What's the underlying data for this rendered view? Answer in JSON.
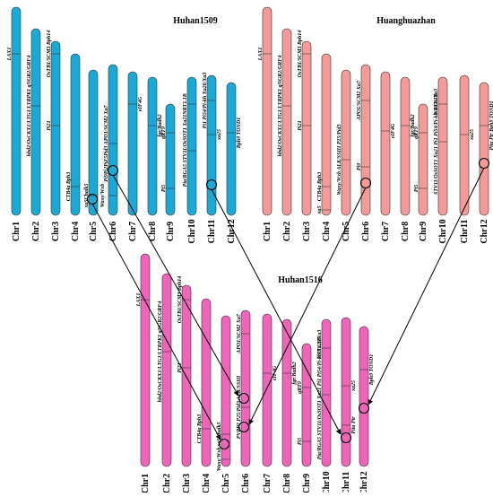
{
  "colors": {
    "huhan1509": "#1aa9d6",
    "huanghuazhan": "#f59a98",
    "huhan1516": "#f064b9",
    "line": "#000000",
    "circle_stroke": "#000000",
    "circle_fill": "#8dbd3a"
  },
  "panels": [
    {
      "id": "huhan1509",
      "title": "Huhan1509",
      "chromosomes": [
        "Chr1",
        "Chr2",
        "Chr3",
        "Chr4",
        "Chr5",
        "Chr6",
        "Chr7",
        "Chr8",
        "Chr9",
        "Chr10",
        "Chr11",
        "Chr12"
      ],
      "genes": [
        {
          "chr": "Chr1",
          "label": "LAX1"
        },
        {
          "chr": "Chr2",
          "label": "hbd2/OsCKX1/LTG1/LTRPK1 qNGR2/GRF4"
        },
        {
          "chr": "Chr3",
          "label": "OsTB1/SCM3 Bph14"
        },
        {
          "chr": "Chr3",
          "label": "Pi21"
        },
        {
          "chr": "Chr4",
          "label": "CTB4a Bph3"
        },
        {
          "chr": "Chr5",
          "label": "xa5Chalk5"
        },
        {
          "chr": "Chr5",
          "label": "Waxy/Wxb"
        },
        {
          "chr": "Chr6",
          "label": "Pi9Pi2PiZ5Pid3 APO1/SCM2 Xa7"
        },
        {
          "chr": "Chr7",
          "label": "eIF4G"
        },
        {
          "chr": "Chr8",
          "label": "fgr/Badh2"
        },
        {
          "chr": "Chr9",
          "label": "qRT9"
        },
        {
          "chr": "Chr9",
          "label": "Pi5"
        },
        {
          "chr": "Chr10",
          "label": "NRT1.1B"
        },
        {
          "chr": "Chr10",
          "label": "Pia/RGA5 STV11/OsSOT1 Xa21"
        },
        {
          "chr": "Chr11",
          "label": "Pi1 Pi54/Pi-kh Xa26/Xa3"
        },
        {
          "chr": "Chr11",
          "label": "xa25"
        },
        {
          "chr": "Chr12",
          "label": "Bph9 TOND1"
        }
      ]
    },
    {
      "id": "huanghuazhan",
      "title": "Huanghuazhan",
      "chromosomes": [
        "Chr1",
        "Chr2",
        "Chr3",
        "Chr4",
        "Chr5",
        "Chr6",
        "Chr7",
        "Chr8",
        "Chr9",
        "Chr10",
        "Chr11",
        "Chr12"
      ],
      "genes": [
        {
          "chr": "Chr1",
          "label": "LAX1"
        },
        {
          "chr": "Chr2",
          "label": "hbd2/OsCKX1/LTG1/LTRPK1 qNGR2/GRF4"
        },
        {
          "chr": "Chr3",
          "label": "OsTB1/SCM3 Bph14"
        },
        {
          "chr": "Chr3",
          "label": "Pi21"
        },
        {
          "chr": "Chr4",
          "label": "CTB4a Bph3"
        },
        {
          "chr": "Chr4",
          "label": "xa5"
        },
        {
          "chr": "Chr5",
          "label": "Waxy/Wxb ALK/SSIII P25/Pid3"
        },
        {
          "chr": "Chr6",
          "label": "APO1/SCM2 Xa7"
        },
        {
          "chr": "Chr6",
          "label": "Pi9"
        },
        {
          "chr": "Chr7",
          "label": "eIF4G"
        },
        {
          "chr": "Chr8",
          "label": "fgr/Badh2"
        },
        {
          "chr": "Chr9",
          "label": "qRT9"
        },
        {
          "chr": "Chr9",
          "label": "Pi5"
        },
        {
          "chr": "Chr10",
          "label": "NRT1.1B"
        },
        {
          "chr": "Chr10",
          "label": "STV11/OsSOT1 Xa21 Pi1 Pi54/Pi-kh Xa26/Xa3"
        },
        {
          "chr": "Chr11",
          "label": "xa25"
        },
        {
          "chr": "Chr12",
          "label": "Pita Ptr Bph9 TOND1"
        }
      ]
    },
    {
      "id": "huhan1516",
      "title": "Huhan1516",
      "chromosomes": [
        "Chr1",
        "Chr2",
        "Chr3",
        "Chr4",
        "Chr5",
        "Chr6",
        "Chr7",
        "Chr8",
        "Chr9",
        "Chr10",
        "Chr11",
        "Chr12"
      ],
      "genes": [
        {
          "chr": "Chr1",
          "label": "LAX1"
        },
        {
          "chr": "Chr2",
          "label": "hbd2/OsCKX1/LTG1/LTRPK1 qNGR2/GRF4"
        },
        {
          "chr": "Chr3",
          "label": "OsTB1/SCM3 Bph14"
        },
        {
          "chr": "Chr3",
          "label": "Pi21"
        },
        {
          "chr": "Chr4",
          "label": "CTB4a Bph3"
        },
        {
          "chr": "Chr5",
          "label": "xa5Chalk5"
        },
        {
          "chr": "Chr5",
          "label": "Waxy/Wxb"
        },
        {
          "chr": "Chr6",
          "label": "APO1/SCM2 Xa7"
        },
        {
          "chr": "Chr6",
          "label": "PVPP2 P25/Pid3 ALK/SSIII"
        },
        {
          "chr": "Chr7",
          "label": "eIF4G"
        },
        {
          "chr": "Chr8",
          "label": "fgr/Badh2"
        },
        {
          "chr": "Chr9",
          "label": "qRT9"
        },
        {
          "chr": "Chr9",
          "label": "Pi5"
        },
        {
          "chr": "Chr10",
          "label": "NRT1.1B"
        },
        {
          "chr": "Chr10",
          "label": "Pia/RGA5 STV11/OsSOT1 Xa21 Pi1 Pi54/Pi-kh Xa26/Xa3"
        },
        {
          "chr": "Chr11",
          "label": "xa25"
        },
        {
          "chr": "Chr11",
          "label": "Pita Ptr"
        },
        {
          "chr": "Chr12",
          "label": "Bph9 TOND1"
        }
      ]
    }
  ]
}
